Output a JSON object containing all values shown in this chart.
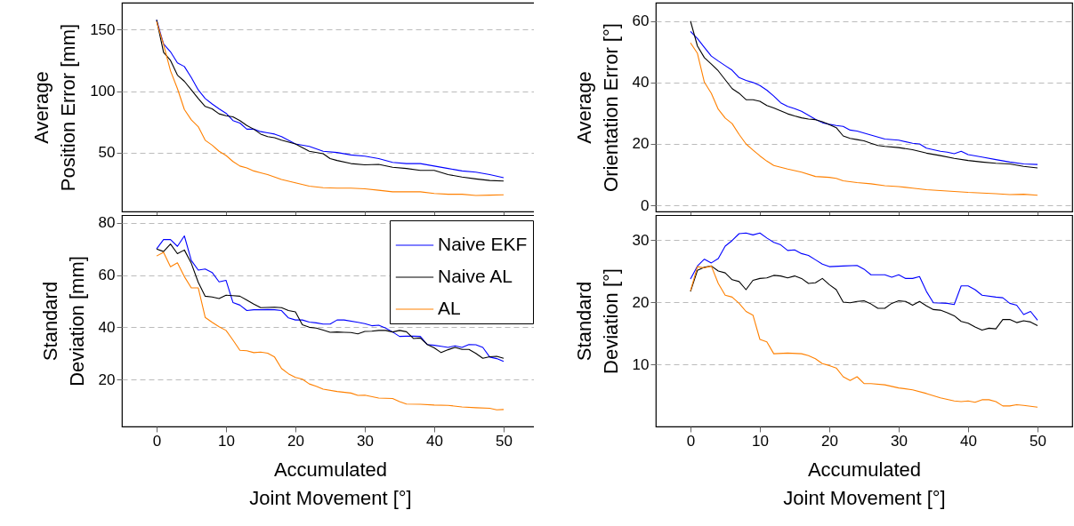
{
  "chart_data": [
    {
      "type": "line",
      "ylabel": "Average\nPosition Error [mm]",
      "xlim": [
        -5,
        55
      ],
      "xticks": [
        0,
        10,
        20,
        30,
        40,
        50
      ],
      "ylim": [
        2,
        172
      ],
      "yticks": [
        50,
        100,
        150
      ],
      "grid": "y",
      "tick_labels": "y",
      "series": [
        {
          "color": "#0000ff",
          "x": [
            0,
            1,
            2,
            3,
            4,
            5,
            6,
            7,
            8,
            9,
            10,
            11,
            12,
            13,
            14,
            15,
            16,
            17,
            18,
            20,
            22,
            24,
            26,
            28,
            30,
            32,
            34,
            36,
            38,
            40,
            42,
            44,
            46,
            48,
            50
          ],
          "values": [
            158,
            138.4,
            132,
            123,
            120,
            111,
            101,
            94,
            89.5,
            85.6,
            82,
            76,
            74,
            69,
            69,
            67,
            66,
            65,
            63,
            57,
            55,
            51,
            50,
            48,
            47,
            45,
            42,
            41,
            41,
            39,
            37,
            35,
            34,
            32,
            29.5
          ]
        },
        {
          "color": "#000000",
          "x": [
            0,
            1,
            2,
            3,
            4,
            5,
            6,
            7,
            8,
            9,
            10,
            11,
            12,
            13,
            14,
            15,
            16,
            17,
            18,
            20,
            22,
            24,
            25,
            26,
            28,
            30,
            32,
            34,
            36,
            38,
            40,
            42,
            44,
            46,
            48,
            50
          ],
          "values": [
            158,
            131.6,
            125,
            113,
            108,
            101,
            94,
            87.5,
            85.6,
            81.5,
            80,
            79,
            76,
            72,
            69,
            65,
            63,
            62,
            60,
            57,
            51,
            49,
            45,
            43.5,
            41,
            40,
            40.3,
            38,
            37,
            35.5,
            35.5,
            32,
            30,
            28.5,
            27.2,
            26.8
          ]
        },
        {
          "color": "#ff8000",
          "x": [
            0,
            1,
            2,
            3,
            4,
            5,
            6,
            7,
            8,
            9,
            10,
            11,
            12,
            13,
            14,
            15,
            16,
            18,
            20,
            22,
            24,
            26,
            28,
            30,
            32,
            34,
            36,
            38,
            40,
            42,
            44,
            46,
            48,
            50
          ],
          "values": [
            156.5,
            138,
            116.6,
            102,
            85,
            76.6,
            71,
            60,
            56,
            51,
            47.6,
            42.7,
            39,
            37.5,
            35,
            33.5,
            32,
            28,
            25.3,
            22.6,
            21.4,
            21,
            21,
            20.5,
            19.3,
            18,
            18,
            18,
            16.6,
            16,
            16,
            15,
            15.3,
            15.6
          ]
        }
      ]
    },
    {
      "type": "line",
      "ylabel": "Average\nOrientation Error [°]",
      "xlim": [
        -5,
        55
      ],
      "xticks": [
        0,
        10,
        20,
        30,
        40,
        50
      ],
      "ylim": [
        -2,
        66
      ],
      "yticks": [
        0,
        20,
        40,
        60
      ],
      "grid": "y",
      "tick_labels": "y",
      "series": [
        {
          "color": "#0000ff",
          "x": [
            0,
            1,
            2,
            3,
            4,
            5,
            6,
            7,
            8,
            9,
            10,
            11,
            12,
            13,
            14,
            15,
            16,
            17,
            18,
            19,
            20,
            21,
            22,
            23,
            24,
            26,
            28,
            30,
            32,
            33,
            34,
            36,
            37,
            38,
            39,
            40,
            42,
            44,
            46,
            48,
            50
          ],
          "values": [
            56.6,
            54.3,
            51.4,
            48.6,
            47,
            45.5,
            44,
            41.6,
            40.7,
            40,
            39,
            37.5,
            35.6,
            33.4,
            32.2,
            31.5,
            30.6,
            29.3,
            28,
            26.9,
            26.4,
            26,
            25.7,
            24.5,
            24.2,
            22.9,
            21.6,
            21.2,
            20.2,
            20,
            18.6,
            17.6,
            17.3,
            16.8,
            17.6,
            16.5,
            15.7,
            14.9,
            14.1,
            13.5,
            13.3
          ]
        },
        {
          "color": "#000000",
          "x": [
            0,
            1,
            2,
            3,
            4,
            5,
            6,
            7,
            8,
            9,
            10,
            11,
            12,
            13,
            14,
            15,
            16,
            17,
            18,
            19,
            20,
            21,
            22,
            23,
            24,
            25,
            26,
            27,
            28,
            30,
            32,
            34,
            36,
            38,
            40,
            42,
            44,
            46,
            48,
            50
          ],
          "values": [
            60,
            51.9,
            48.1,
            46,
            43.8,
            40.9,
            38,
            36.5,
            34.4,
            34.4,
            33.9,
            32.5,
            31.7,
            30.8,
            29.8,
            29.1,
            28.5,
            28.1,
            27.9,
            27.2,
            26.3,
            25.3,
            22.6,
            21.8,
            21.4,
            21,
            20.2,
            19.5,
            19.2,
            18.8,
            18.1,
            17,
            16.2,
            15.3,
            14.6,
            14.1,
            13.7,
            13.5,
            12.7,
            12.2
          ]
        },
        {
          "color": "#ff8000",
          "x": [
            0,
            1,
            2,
            3,
            4,
            5,
            6,
            7,
            8,
            9,
            10,
            11,
            12,
            13,
            14,
            15,
            16,
            18,
            20,
            21,
            22,
            24,
            26,
            28,
            30,
            32,
            34,
            36,
            38,
            40,
            42,
            44,
            46,
            48,
            50
          ],
          "values": [
            52.9,
            49.5,
            40.1,
            36.5,
            31.3,
            28.4,
            26.6,
            23.1,
            20,
            18,
            16.1,
            14.4,
            13,
            12.4,
            11.8,
            11.3,
            10.8,
            9.4,
            9.1,
            8.8,
            8,
            7.4,
            7,
            6.4,
            6.1,
            5.6,
            5.1,
            4.8,
            4.5,
            4.2,
            4,
            3.8,
            3.5,
            3.6,
            3.3
          ]
        }
      ]
    },
    {
      "type": "line",
      "ylabel": "Standard\nDeviation [mm]",
      "xlabel": "Accumulated\nJoint Movement [°]",
      "xlim": [
        -5,
        55
      ],
      "xticks": [
        0,
        10,
        20,
        30,
        40,
        50
      ],
      "ylim": [
        2,
        83
      ],
      "yticks": [
        20,
        40,
        60,
        80
      ],
      "grid": "y",
      "legend": "top right",
      "series": [
        {
          "name": "Naive EKF",
          "color": "#0000ff",
          "x": [
            0,
            1,
            2,
            3,
            4,
            5,
            6,
            7,
            8,
            9,
            10,
            11,
            12,
            13,
            14,
            15,
            16,
            17,
            18,
            19,
            20,
            21,
            22,
            23,
            24,
            25,
            26,
            27,
            29,
            30,
            31,
            32,
            33,
            34,
            35,
            36,
            37,
            38,
            39,
            40,
            41,
            42,
            43,
            44,
            45,
            46,
            47,
            48,
            49,
            50
          ],
          "values": [
            70,
            73.6,
            73.6,
            71,
            75,
            65.6,
            61.9,
            62.3,
            61,
            57.4,
            58,
            49.5,
            48.5,
            46.4,
            46.7,
            46.7,
            46.8,
            46.7,
            46.4,
            43.6,
            42.8,
            42.8,
            42,
            41.7,
            41.2,
            41.2,
            42.8,
            42.8,
            41.9,
            41.4,
            40.6,
            40.8,
            39.7,
            38.2,
            36.5,
            36.6,
            36.6,
            36.5,
            33.4,
            33.1,
            32.7,
            32.3,
            32.9,
            32.3,
            33.4,
            33.3,
            32.3,
            28.6,
            28,
            26.9
          ]
        },
        {
          "name": "Naive AL",
          "color": "#000000",
          "x": [
            0,
            1,
            2,
            3,
            4,
            5,
            6,
            7,
            8,
            9,
            10,
            11,
            12,
            13,
            14,
            15,
            16,
            17,
            18,
            19,
            20,
            21,
            22,
            23,
            24,
            25,
            26,
            27,
            28,
            29,
            30,
            31,
            32,
            33,
            34,
            35,
            36,
            37,
            38,
            39,
            40,
            41,
            42,
            43,
            44,
            45,
            46,
            47,
            48,
            49,
            50
          ],
          "values": [
            70,
            69,
            71.9,
            68.2,
            69.6,
            64.5,
            57.2,
            51.9,
            51.6,
            51,
            52.3,
            52.1,
            51.9,
            50.4,
            48.9,
            47.5,
            47.6,
            47.7,
            47.5,
            46.4,
            45.9,
            41,
            40,
            39.7,
            38.9,
            38.1,
            38.2,
            38.1,
            38,
            37.5,
            38.4,
            38.5,
            38.8,
            38.8,
            38.2,
            38.8,
            38.3,
            35.7,
            35.9,
            33.4,
            32.1,
            30.3,
            31.4,
            32.3,
            31.5,
            31.5,
            30,
            28.1,
            28.7,
            28.9,
            28.1
          ]
        },
        {
          "name": "AL",
          "color": "#ff8000",
          "x": [
            0,
            1,
            2,
            3,
            4,
            5,
            6,
            7,
            8,
            9,
            10,
            11,
            12,
            13,
            14,
            15,
            16,
            17,
            18,
            19,
            20,
            21,
            22,
            23,
            24,
            26,
            28,
            29,
            30,
            32,
            34,
            35,
            36,
            38,
            40,
            42,
            44,
            46,
            48,
            49,
            50
          ],
          "values": [
            67.3,
            68.7,
            63.2,
            64.7,
            59.4,
            55.1,
            55.1,
            43.8,
            41.9,
            40.2,
            38.8,
            35.1,
            31.2,
            31,
            30.3,
            30.5,
            30.1,
            28.6,
            24.2,
            22.2,
            20.8,
            20.1,
            18.3,
            17.4,
            16.3,
            15.4,
            14.8,
            13.9,
            14,
            12.9,
            12.7,
            11.5,
            10.6,
            10.5,
            10.2,
            10.1,
            9.5,
            9.2,
            9,
            8.4,
            8.5
          ]
        }
      ]
    },
    {
      "type": "line",
      "ylabel": "Standard\nDeviation [°]",
      "xlabel": "Accumulated\nJoint Movement [°]",
      "xlim": [
        -5,
        55
      ],
      "xticks": [
        0,
        10,
        20,
        30,
        40,
        50
      ],
      "ylim": [
        0,
        34
      ],
      "yticks": [
        10,
        20,
        30
      ],
      "grid": "y",
      "series": [
        {
          "color": "#0000ff",
          "x": [
            0,
            1,
            2,
            3,
            4,
            5,
            6,
            7,
            8,
            9,
            10,
            11,
            12,
            13,
            14,
            15,
            16,
            17,
            18,
            19,
            20,
            22,
            24,
            25,
            26,
            28,
            29,
            30,
            31,
            32,
            33,
            34,
            35,
            37,
            38,
            39,
            40,
            41,
            42,
            44,
            45,
            46,
            47,
            48,
            49,
            50
          ],
          "values": [
            23.7,
            25.8,
            26.9,
            26.3,
            27,
            29,
            29.9,
            31,
            31.1,
            30.8,
            31.1,
            30.3,
            29.6,
            29.2,
            28.3,
            28.4,
            27.8,
            27.5,
            26.8,
            26.1,
            25.7,
            25.8,
            25.9,
            25.3,
            24.4,
            24.4,
            24,
            24.4,
            23.8,
            23.8,
            24.1,
            21.7,
            19.9,
            19.8,
            19.6,
            22.6,
            22.6,
            22,
            21.1,
            20.8,
            20.7,
            19.8,
            19.5,
            18,
            18.5,
            17.1
          ]
        },
        {
          "color": "#000000",
          "x": [
            0,
            1,
            2,
            3,
            4,
            5,
            6,
            7,
            8,
            9,
            10,
            11,
            12,
            13,
            14,
            15,
            16,
            17,
            18,
            19,
            20,
            21,
            22,
            23,
            24,
            25,
            26,
            27,
            28,
            29,
            30,
            31,
            32,
            33,
            34,
            35,
            36,
            37,
            38,
            39,
            40,
            41,
            42,
            43,
            44,
            45,
            46,
            47,
            48,
            49,
            50
          ],
          "values": [
            21.7,
            25.1,
            25.6,
            25.8,
            25,
            24.7,
            23.6,
            23.3,
            22,
            23.5,
            23.8,
            23.9,
            24.3,
            24.2,
            23.9,
            24.2,
            23.8,
            23,
            23.1,
            23.8,
            22.8,
            22,
            20,
            19.9,
            20.1,
            20.2,
            19.7,
            19,
            19,
            19.8,
            20.2,
            20.1,
            19.5,
            20.1,
            19.4,
            18.8,
            18.7,
            18.3,
            17.8,
            16.9,
            16.6,
            16,
            15.5,
            15.8,
            15.7,
            17.2,
            17.2,
            16.7,
            17,
            16.8,
            16.2
          ]
        },
        {
          "color": "#ff8000",
          "x": [
            0,
            1,
            2,
            3,
            4,
            5,
            6,
            7,
            8,
            9,
            10,
            11,
            12,
            14,
            16,
            17,
            18,
            19,
            20,
            21,
            22,
            23,
            24,
            25,
            26,
            28,
            30,
            32,
            34,
            36,
            38,
            39,
            40,
            41,
            42,
            43,
            44,
            45,
            46,
            47,
            48,
            50
          ],
          "values": [
            21.8,
            25.7,
            25.5,
            25.8,
            23,
            21.1,
            20.8,
            19.8,
            18.5,
            17.9,
            14,
            13.6,
            11.7,
            11.8,
            11.7,
            11.4,
            10.9,
            10.1,
            9.8,
            9.4,
            8,
            7.4,
            8,
            6.9,
            6.9,
            6.7,
            6.2,
            5.9,
            5.3,
            4.6,
            4.1,
            4,
            4.1,
            3.9,
            4.3,
            4.3,
            4,
            3.3,
            3.3,
            3.5,
            3.4,
            3.1
          ]
        }
      ]
    }
  ]
}
